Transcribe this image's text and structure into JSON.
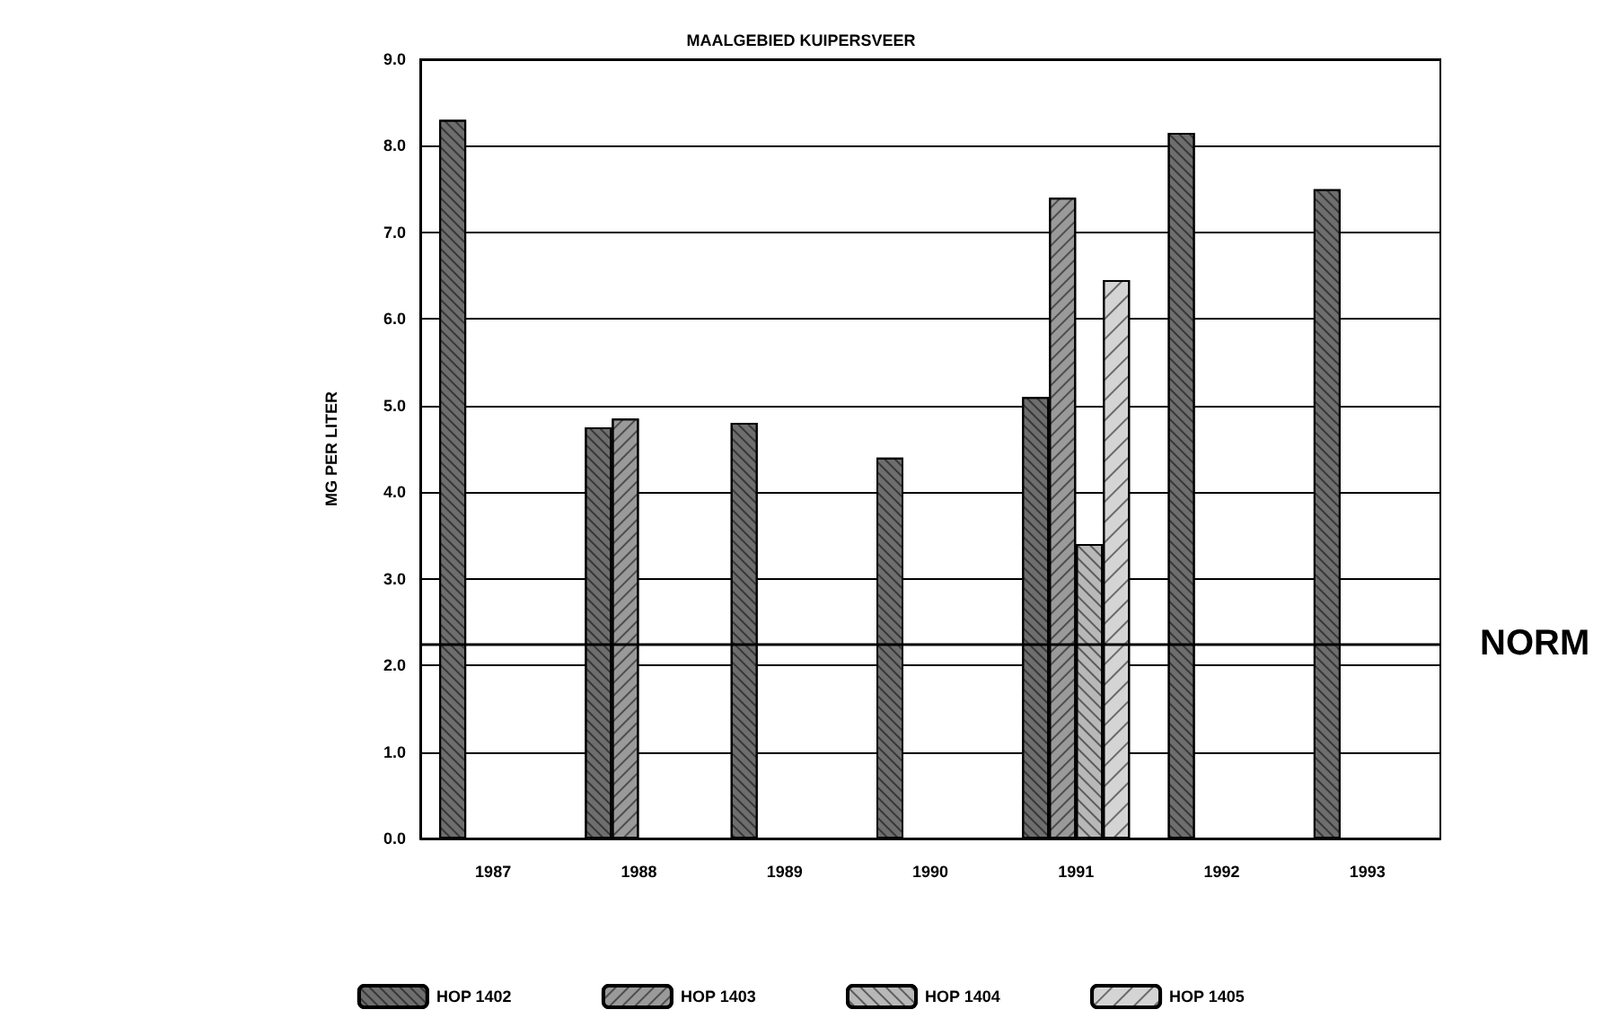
{
  "chart_data": {
    "type": "bar",
    "title": "MAALGEBIED KUIPERSVEER",
    "ylabel": "MG PER LITER",
    "categories": [
      "1987",
      "1988",
      "1989",
      "1990",
      "1991",
      "1992",
      "1993"
    ],
    "series": [
      {
        "name": "HOP 1402",
        "color": "#6e6e6e",
        "values": [
          8.3,
          4.75,
          4.8,
          4.4,
          5.1,
          8.15,
          7.5
        ]
      },
      {
        "name": "HOP 1403",
        "color": "#9a9a9a",
        "values": [
          null,
          4.85,
          null,
          null,
          7.4,
          null,
          null
        ]
      },
      {
        "name": "HOP 1404",
        "color": "#b8b8b8",
        "values": [
          null,
          null,
          null,
          null,
          3.4,
          null,
          null
        ]
      },
      {
        "name": "HOP 1405",
        "color": "#d4d4d4",
        "values": [
          null,
          null,
          null,
          null,
          6.45,
          null,
          null
        ]
      }
    ],
    "ylim": [
      0,
      9
    ],
    "yticks": [
      {
        "value": 0,
        "label": "0.0"
      },
      {
        "value": 1,
        "label": "1.0"
      },
      {
        "value": 2,
        "label": "2.0"
      },
      {
        "value": 3,
        "label": "3.0"
      },
      {
        "value": 4,
        "label": "4.0"
      },
      {
        "value": 5,
        "label": "5.0"
      },
      {
        "value": 6,
        "label": "6.0"
      },
      {
        "value": 7,
        "label": "7.0"
      },
      {
        "value": 8,
        "label": "8.0"
      },
      {
        "value": 9,
        "label": "9.0"
      }
    ],
    "ref_lines": [
      {
        "axis": "y",
        "value": 2.25,
        "label": "NORM",
        "color": "#000000"
      }
    ],
    "grid": "y",
    "legend": "bottom"
  }
}
